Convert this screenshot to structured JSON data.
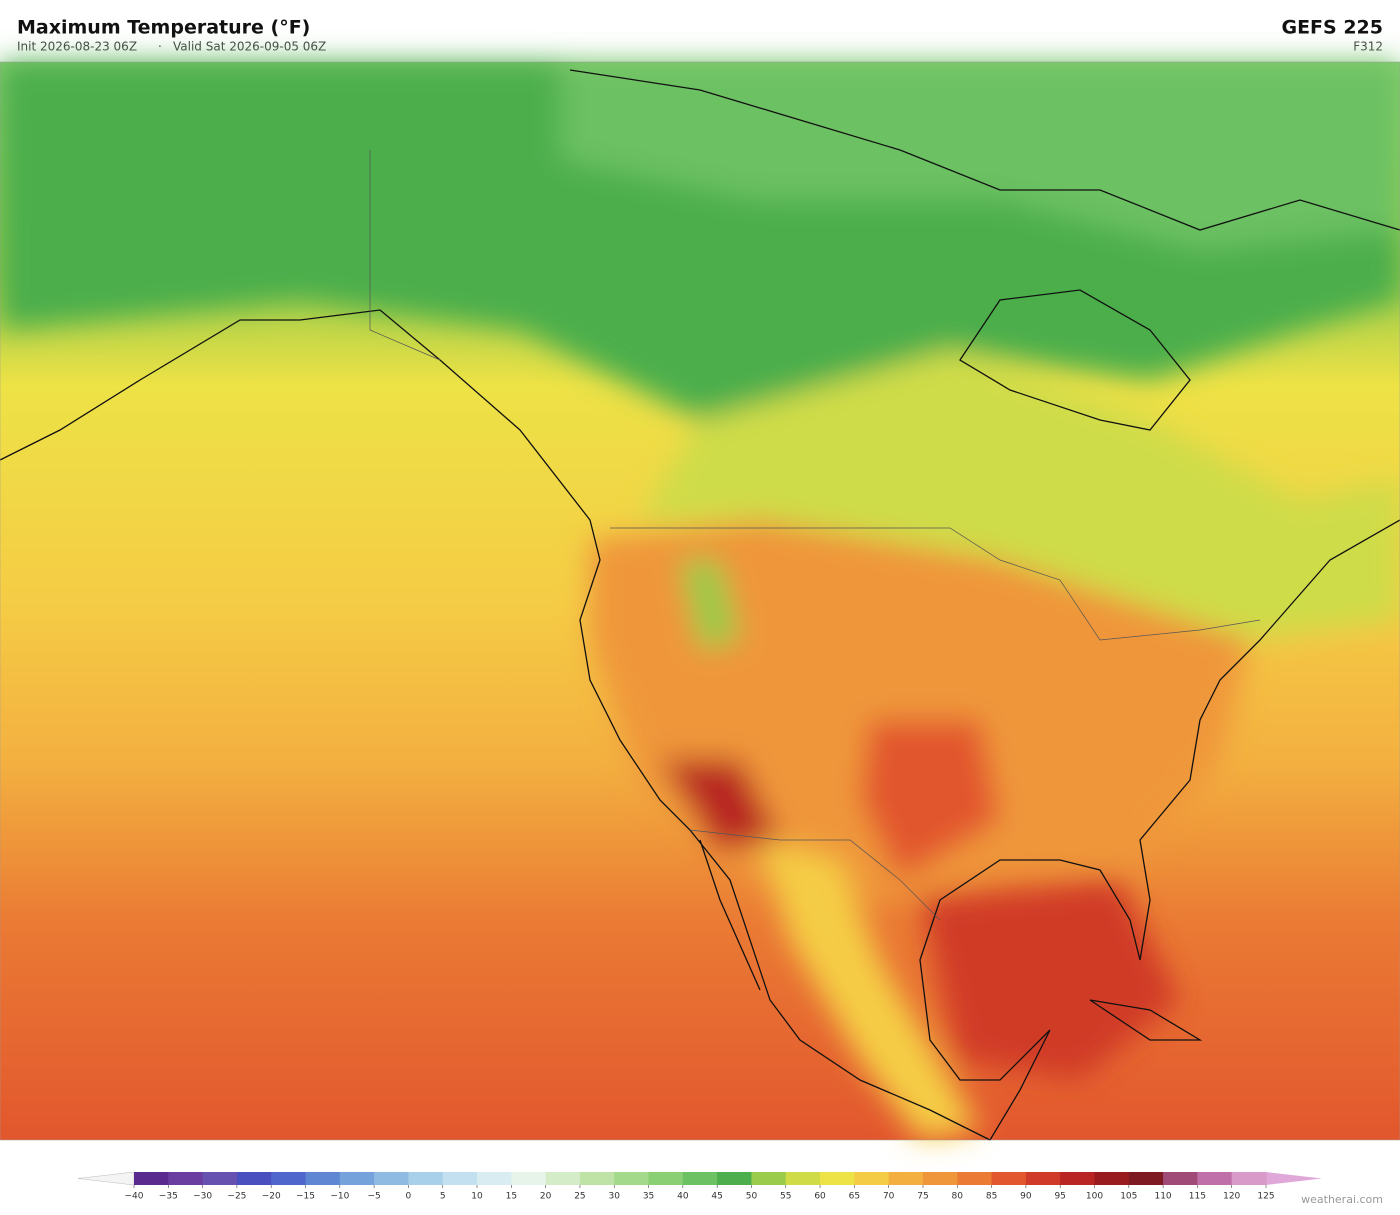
{
  "header": {
    "title": "Maximum Temperature  (°F)",
    "init": "Init 2026-08-23 06Z",
    "separator": "·",
    "valid": "Valid Sat 2026-09-05 06Z",
    "model": "GEFS  225",
    "forecast_hour": "F312"
  },
  "colorbar": {
    "ticks": [
      {
        "value": -40,
        "label": "−40"
      },
      {
        "value": -35,
        "label": "−35"
      },
      {
        "value": -30,
        "label": "−30"
      },
      {
        "value": -25,
        "label": "−25"
      },
      {
        "value": -20,
        "label": "−20"
      },
      {
        "value": -15,
        "label": "−15"
      },
      {
        "value": -10,
        "label": "−10"
      },
      {
        "value": -5,
        "label": "−5"
      },
      0,
      5,
      10,
      15,
      20,
      25,
      30,
      35,
      40,
      45,
      50,
      55,
      60,
      65,
      70,
      75,
      80,
      85,
      90,
      95,
      100,
      105,
      110,
      115,
      120,
      125
    ],
    "under_color": "#f4f4f4",
    "colors": [
      "#5b2a8e",
      "#6a3ea0",
      "#6650b0",
      "#4a4fc0",
      "#4f66cc",
      "#5f86d2",
      "#76a2dc",
      "#8fbbe2",
      "#a8d0ea",
      "#c2e0ef",
      "#d8ecf2",
      "#e6f4ea",
      "#d5ecc8",
      "#bfe3a6",
      "#a3d98a",
      "#8acf74",
      "#6cc162",
      "#4cae4c",
      "#9acb4a",
      "#cfdc48",
      "#ede246",
      "#f5cc45",
      "#f3b040",
      "#ef963a",
      "#ea7a34",
      "#e2572e",
      "#d03a28",
      "#b82522",
      "#9a1b1f",
      "#7e1a22",
      "#a04a78",
      "#c070a8",
      "#d89ac8"
    ],
    "over_color": "#e0a8d8"
  },
  "watermark": "weatherai.com"
}
